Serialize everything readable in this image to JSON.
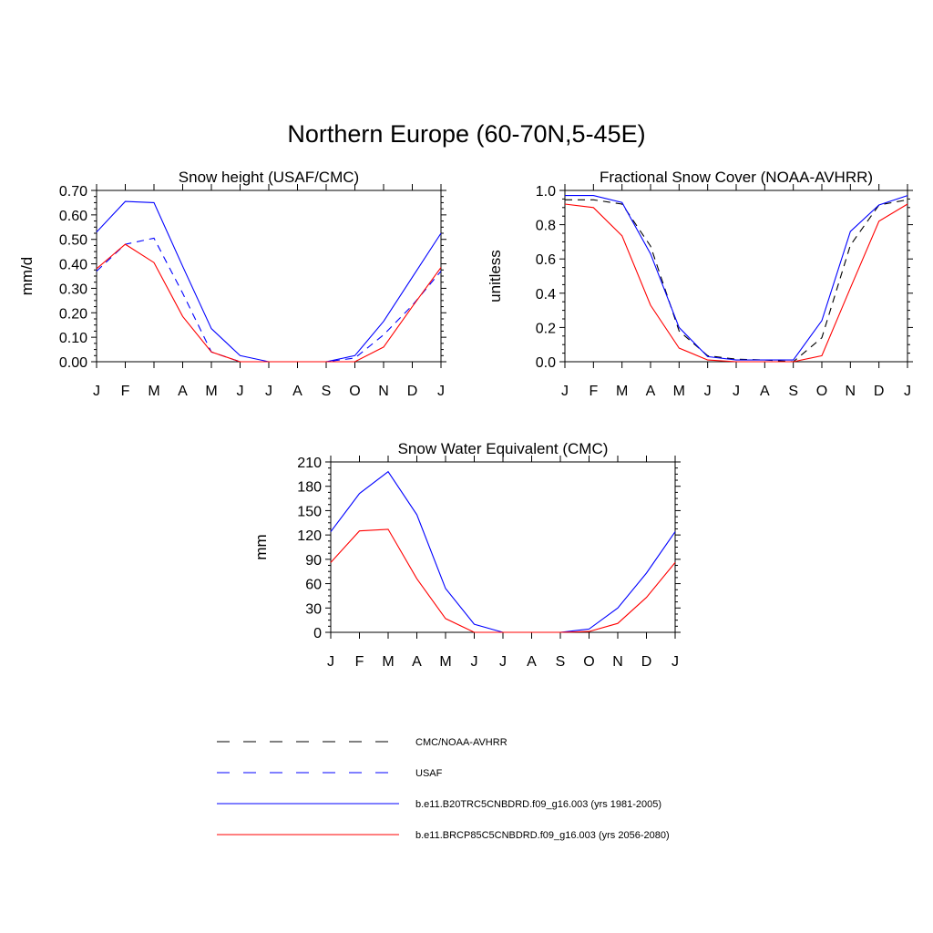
{
  "title": "Northern Europe (60-70N,5-45E)",
  "legend": [
    {
      "label": "CMC/NOAA-AVHRR",
      "color": "#000000",
      "dash": true
    },
    {
      "label": "USAF",
      "color": "#0000ff",
      "dash": true
    },
    {
      "label": "b.e11.B20TRC5CNBDRD.f09_g16.003 (yrs 1981-2005)",
      "color": "#0000ff",
      "dash": false
    },
    {
      "label": "b.e11.BRCP85C5CNBDRD.f09_g16.003 (yrs 2056-2080)",
      "color": "#ff0000",
      "dash": false
    }
  ],
  "chart_data": [
    {
      "type": "line",
      "title": "Snow height (USAF/CMC)",
      "ylabel": "mm/d",
      "xlabel": "",
      "categories": [
        "J",
        "F",
        "M",
        "A",
        "M",
        "J",
        "J",
        "A",
        "S",
        "O",
        "N",
        "D",
        "J"
      ],
      "ylim": [
        0,
        0.7
      ],
      "yticks": [
        "0.00",
        "0.10",
        "0.20",
        "0.30",
        "0.40",
        "0.50",
        "0.60",
        "0.70"
      ],
      "series": [
        {
          "name": "CMC/NOAA-AVHRR",
          "color": "#000000",
          "dash": true,
          "values": [
            0,
            0,
            0,
            0,
            0,
            0,
            0,
            0,
            0,
            0,
            0,
            0,
            0
          ]
        },
        {
          "name": "USAF",
          "color": "#0000ff",
          "dash": true,
          "values": [
            0.37,
            0.48,
            0.505,
            0.28,
            0.04,
            0.0,
            0.0,
            0.0,
            0.0,
            0.015,
            0.11,
            0.23,
            0.37
          ]
        },
        {
          "name": "b.e11.B20TRC5CNBDRD.f09_g16.003 (yrs 1981-2005)",
          "color": "#0000ff",
          "dash": false,
          "values": [
            0.53,
            0.655,
            0.65,
            0.39,
            0.135,
            0.025,
            0.0,
            0.0,
            0.0,
            0.025,
            0.165,
            0.345,
            0.525
          ]
        },
        {
          "name": "b.e11.BRCP85C5CNBDRD.f09_g16.003 (yrs 2056-2080)",
          "color": "#ff0000",
          "dash": false,
          "values": [
            0.38,
            0.48,
            0.405,
            0.185,
            0.04,
            0.0,
            0.0,
            0.0,
            0.0,
            0.0,
            0.06,
            0.225,
            0.385
          ]
        }
      ]
    },
    {
      "type": "line",
      "title": "Fractional Snow Cover (NOAA-AVHRR)",
      "ylabel": "unitless",
      "xlabel": "",
      "categories": [
        "J",
        "F",
        "M",
        "A",
        "M",
        "J",
        "J",
        "A",
        "S",
        "O",
        "N",
        "D",
        "J"
      ],
      "ylim": [
        0,
        1.0
      ],
      "yticks": [
        "0.0",
        "0.2",
        "0.4",
        "0.6",
        "0.8",
        "1.0"
      ],
      "series": [
        {
          "name": "CMC/NOAA-AVHRR",
          "color": "#000000",
          "dash": true,
          "values": [
            0.945,
            0.945,
            0.92,
            0.675,
            0.18,
            0.035,
            0.015,
            0.01,
            0.0,
            0.14,
            0.68,
            0.915,
            0.945
          ]
        },
        {
          "name": "b.e11.B20TRC5CNBDRD.f09_g16.003 (yrs 1981-2005)",
          "color": "#0000ff",
          "dash": false,
          "values": [
            0.97,
            0.97,
            0.93,
            0.63,
            0.2,
            0.03,
            0.01,
            0.01,
            0.01,
            0.24,
            0.76,
            0.915,
            0.97
          ]
        },
        {
          "name": "b.e11.BRCP85C5CNBDRD.f09_g16.003 (yrs 2056-2080)",
          "color": "#ff0000",
          "dash": false,
          "values": [
            0.92,
            0.9,
            0.735,
            0.33,
            0.08,
            0.01,
            0.0,
            0.0,
            0.0,
            0.035,
            0.43,
            0.82,
            0.92
          ]
        }
      ]
    },
    {
      "type": "line",
      "title": "Snow Water Equivalent (CMC)",
      "ylabel": "mm",
      "xlabel": "",
      "categories": [
        "J",
        "F",
        "M",
        "A",
        "M",
        "J",
        "J",
        "A",
        "S",
        "O",
        "N",
        "D",
        "J"
      ],
      "ylim": [
        0,
        210
      ],
      "yticks": [
        "0",
        "30",
        "60",
        "90",
        "120",
        "150",
        "180",
        "210"
      ],
      "series": [
        {
          "name": "CMC/NOAA-AVHRR",
          "color": "#000000",
          "dash": true,
          "values": [
            0,
            0,
            0,
            0,
            0,
            0,
            0,
            0,
            0,
            0,
            0,
            0,
            0
          ]
        },
        {
          "name": "b.e11.B20TRC5CNBDRD.f09_g16.003 (yrs 1981-2005)",
          "color": "#0000ff",
          "dash": false,
          "values": [
            124,
            171,
            198,
            145,
            54,
            10,
            0,
            0,
            0,
            4,
            30,
            73,
            124
          ]
        },
        {
          "name": "b.e11.BRCP85C5CNBDRD.f09_g16.003 (yrs 2056-2080)",
          "color": "#ff0000",
          "dash": false,
          "values": [
            86,
            125,
            127,
            66,
            17,
            0,
            0,
            0,
            0,
            1,
            11,
            43,
            86
          ]
        }
      ]
    }
  ]
}
